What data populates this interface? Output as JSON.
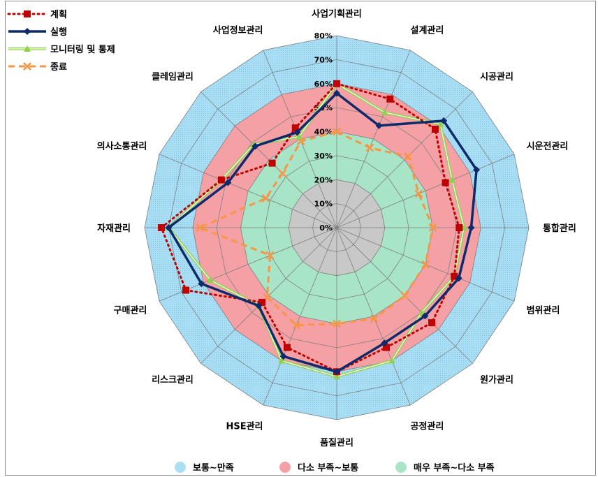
{
  "chart_data": {
    "type": "radar",
    "title": "",
    "categories": [
      "사업기획관리",
      "설계관리",
      "시공관리",
      "시운전관리",
      "통합관리",
      "범위관리",
      "원가관리",
      "공정관리",
      "품질관리",
      "HSE관리",
      "리스크관리",
      "구매관리",
      "자재관리",
      "의사소통관리",
      "클레임관리",
      "사업정보관리"
    ],
    "r_ticks": [
      "0%",
      "10%",
      "20%",
      "30%",
      "40%",
      "50%",
      "60%",
      "70%",
      "80%"
    ],
    "r_max": 80,
    "series": [
      {
        "name": "계획",
        "color": "#c00000",
        "values": [
          60,
          58,
          58,
          49,
          51,
          53,
          56,
          54,
          60,
          54,
          44,
          68,
          73,
          52,
          38,
          45
        ]
      },
      {
        "name": "실행",
        "color": "#0d2a6b",
        "values": [
          56,
          46,
          63,
          63,
          56,
          55,
          52,
          52,
          60,
          58,
          46,
          61,
          70,
          49,
          48,
          43
        ]
      },
      {
        "name": "모니터링 및 통제",
        "color": "#92d050",
        "values": [
          60,
          52,
          61,
          52,
          53,
          53,
          50,
          60,
          62,
          60,
          46,
          57,
          70,
          52,
          49,
          41
        ]
      },
      {
        "name": "종료",
        "color": "#f79646",
        "values": [
          40,
          36,
          42,
          37,
          40,
          40,
          40,
          41,
          40,
          44,
          41,
          30,
          57,
          32,
          32,
          39
        ]
      }
    ],
    "bands": [
      {
        "label": "보통~만족",
        "color": "#a9def5",
        "from": 60,
        "to": 80
      },
      {
        "label": "다소 부족~보통",
        "color": "#f5a0a4",
        "from": 40,
        "to": 60
      },
      {
        "label": "매우 부족~다소 부족",
        "color": "#a8e4c6",
        "from": 20,
        "to": 40
      }
    ],
    "inner_band_color": "#c8c8c8",
    "legend_position": "top-left"
  }
}
